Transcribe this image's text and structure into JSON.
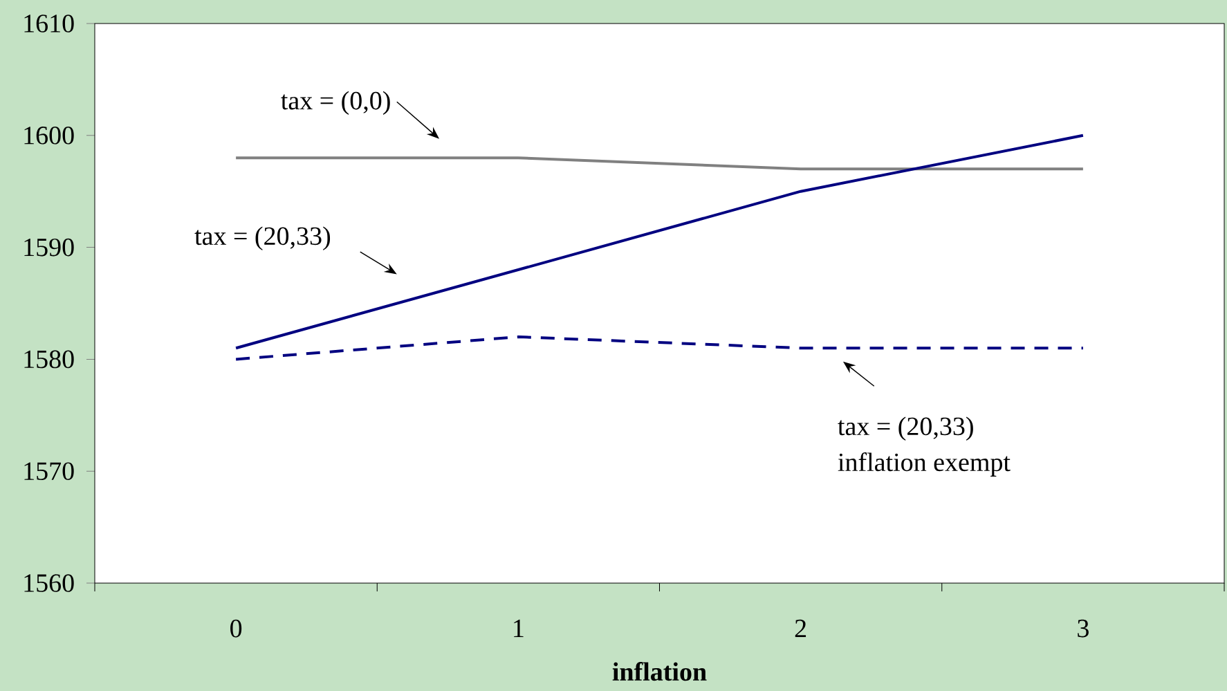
{
  "chart_data": {
    "type": "line",
    "xlabel": "inflation",
    "categories": [
      "0",
      "1",
      "2",
      "3"
    ],
    "series": [
      {
        "color": "#808080",
        "values": [
          1598,
          1598,
          1597,
          1597
        ],
        "line_style": "solid"
      },
      {
        "color": "#000080",
        "values": [
          1581,
          1588,
          1595,
          1600
        ],
        "line_style": "solid"
      },
      {
        "color": "#000080",
        "values": [
          1580,
          1582,
          1581,
          1581
        ],
        "line_style": "dashed"
      }
    ],
    "ylim": [
      1560,
      1610
    ],
    "yticks": [
      1560,
      1570,
      1580,
      1590,
      1600,
      1610
    ],
    "grid": false,
    "marker": "none",
    "annotations": [
      "tax = (0,0)",
      "tax = (20,33)",
      "tax = (20,33)",
      "inflation exempt"
    ]
  }
}
